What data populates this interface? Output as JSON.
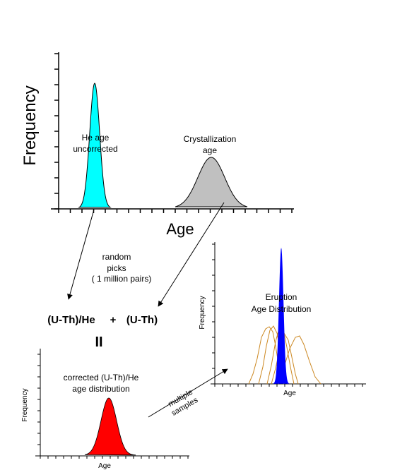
{
  "panels": {
    "top": {
      "ylabel": "Frequency",
      "xlabel": "Age",
      "he_label_1": "He age",
      "he_label_2": "uncorrected",
      "cryst_label_1": "Crystallization",
      "cryst_label_2": "age",
      "he_color": "#00ffff",
      "cryst_color": "#c0c0c0"
    },
    "bottom_left": {
      "ylabel": "Frequency",
      "xlabel": "Age",
      "label_1": "corrected (U-Th)/He",
      "label_2": "age distribution",
      "color": "#ff0000"
    },
    "right": {
      "ylabel": "Frequency",
      "xlabel": "Age",
      "label_1": "Eruption",
      "label_2": "Age Distribution",
      "eruption_color": "#0000ff",
      "sample_color": "#cc8822"
    }
  },
  "annotations": {
    "random_1": "random",
    "random_2": "picks",
    "random_3": "( 1 million pairs)",
    "equation_left": "(U-Th)/He",
    "equation_plus": "+",
    "equation_right": "(U-Th)",
    "equals": "II",
    "multiple_1": "multiple",
    "multiple_2": "samples"
  }
}
